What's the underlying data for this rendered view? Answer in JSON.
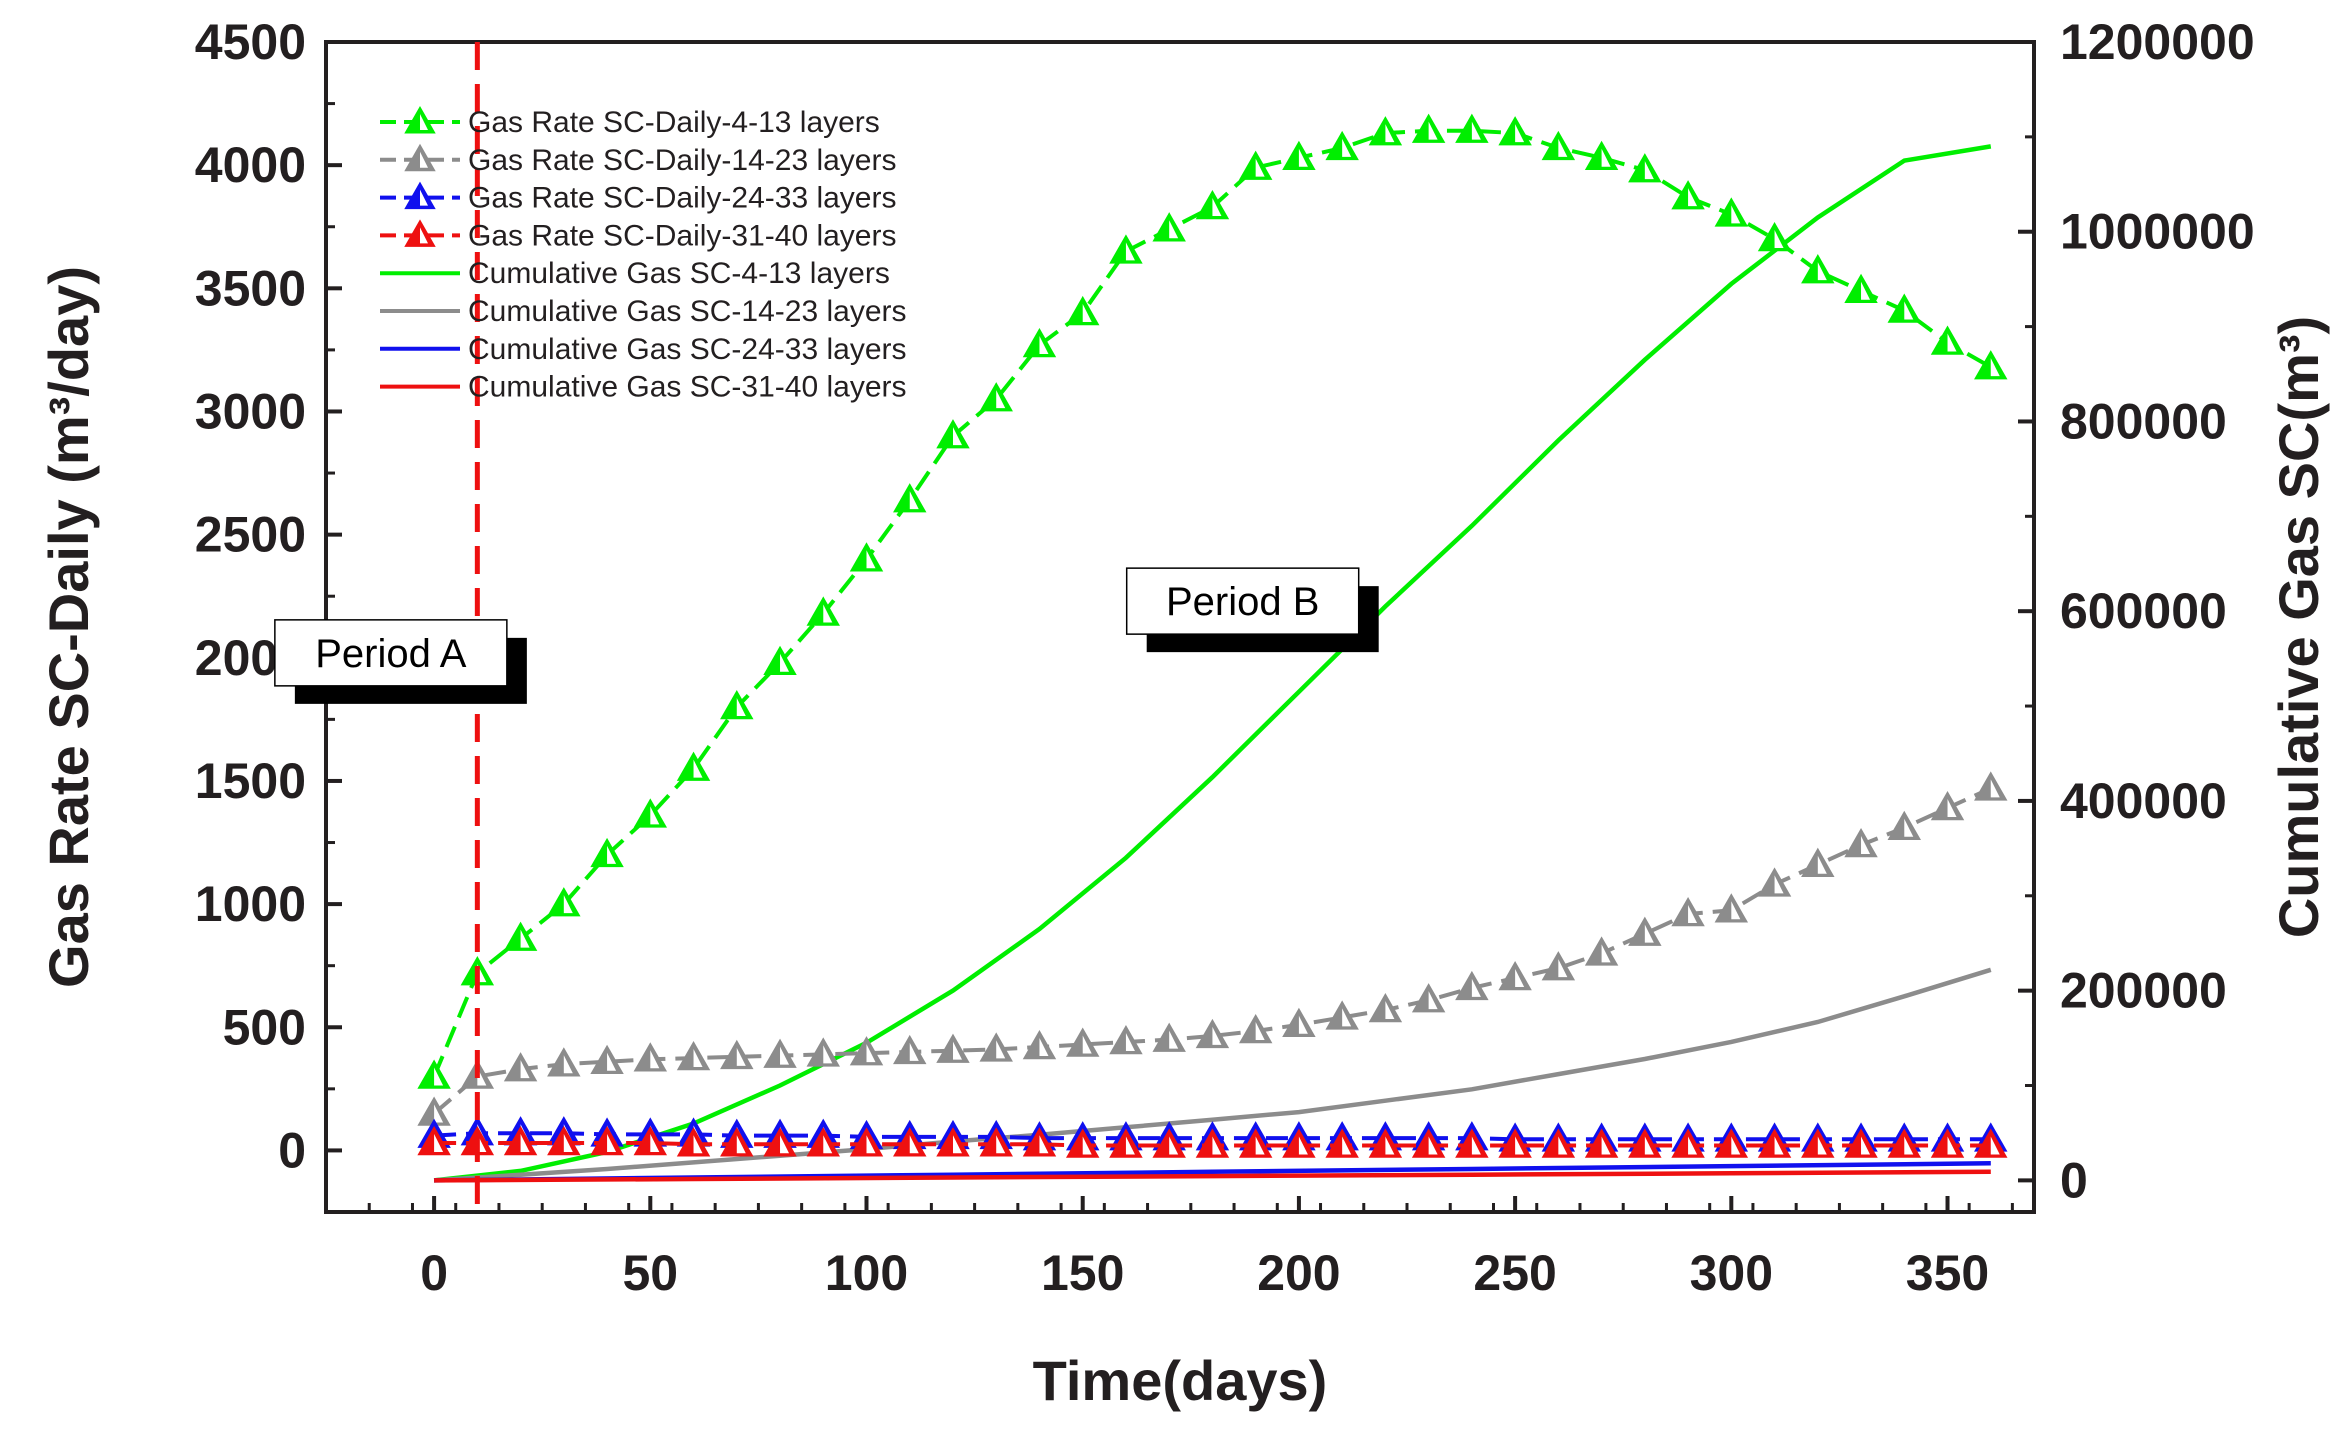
{
  "chart_data": {
    "type": "line",
    "xlabel": "Time(days)",
    "ylabel_left": "Gas Rate SC-Daily (m³/day)",
    "ylabel_right": "Cumulative Gas SC(m³)",
    "xlim": [
      -25,
      370
    ],
    "ylim_left": [
      -250,
      4500
    ],
    "ylim_right": [
      -33333,
      1200000
    ],
    "x_ticks": [
      0,
      50,
      100,
      150,
      200,
      250,
      300,
      350
    ],
    "x_tick_labels": [
      "0",
      "50",
      "100",
      "150",
      "200",
      "250",
      "300",
      "350"
    ],
    "y_left_ticks": [
      0,
      500,
      1000,
      1500,
      2000,
      2500,
      3000,
      3500,
      4000,
      4500
    ],
    "y_left_tick_labels": [
      "0",
      "500",
      "1000",
      "1500",
      "2000",
      "2500",
      "3000",
      "3500",
      "4000",
      "4500"
    ],
    "y_right_ticks": [
      0,
      200000,
      400000,
      600000,
      800000,
      1000000,
      1200000
    ],
    "y_right_tick_labels": [
      "0",
      "200000",
      "400000",
      "600000",
      "800000",
      "1000000",
      "1200000"
    ],
    "vline_x": 10,
    "annotations": [
      {
        "text": "Period A",
        "x": -10,
        "y": 2020
      },
      {
        "text": "Period B",
        "x": 187,
        "y": 2230
      }
    ],
    "series": [
      {
        "name": "Gas Rate SC-Daily-4-13 layers",
        "legend_label": "Gas Rate SC-Daily-4-13    layers",
        "kind": "rate",
        "axis": "left",
        "color": "#00ee00",
        "x": [
          0,
          10,
          20,
          30,
          40,
          50,
          60,
          70,
          80,
          90,
          100,
          110,
          120,
          130,
          140,
          150,
          160,
          170,
          180,
          190,
          200,
          210,
          220,
          230,
          240,
          250,
          260,
          270,
          280,
          290,
          300,
          310,
          320,
          330,
          340,
          350,
          360
        ],
        "values": [
          300,
          720,
          860,
          1000,
          1200,
          1360,
          1550,
          1800,
          1980,
          2180,
          2400,
          2640,
          2900,
          3050,
          3270,
          3400,
          3650,
          3740,
          3830,
          3990,
          4030,
          4070,
          4130,
          4140,
          4140,
          4130,
          4070,
          4030,
          3980,
          3870,
          3800,
          3700,
          3570,
          3490,
          3410,
          3280,
          3180
        ]
      },
      {
        "name": "Gas Rate SC-Daily-14-23 layers",
        "legend_label": "Gas Rate SC-Daily-14-23  layers",
        "kind": "rate",
        "axis": "left",
        "color": "#8c8c8c",
        "x": [
          0,
          10,
          20,
          30,
          40,
          50,
          60,
          70,
          80,
          90,
          100,
          110,
          120,
          130,
          140,
          150,
          160,
          170,
          180,
          190,
          200,
          210,
          220,
          230,
          240,
          250,
          260,
          270,
          280,
          290,
          300,
          310,
          320,
          330,
          340,
          350,
          360
        ],
        "values": [
          150,
          300,
          330,
          350,
          360,
          370,
          375,
          380,
          385,
          390,
          395,
          400,
          405,
          410,
          420,
          430,
          440,
          450,
          465,
          485,
          510,
          540,
          570,
          610,
          660,
          700,
          740,
          800,
          880,
          960,
          975,
          1080,
          1160,
          1240,
          1310,
          1390,
          1470
        ]
      },
      {
        "name": "Gas Rate SC-Daily-24-33 layers",
        "legend_label": "Gas Rate SC-Daily-24-33  layers",
        "kind": "rate",
        "axis": "left",
        "color": "#1010ee",
        "x": [
          0,
          10,
          20,
          30,
          40,
          50,
          60,
          70,
          80,
          90,
          100,
          110,
          120,
          130,
          140,
          150,
          160,
          170,
          180,
          190,
          200,
          210,
          220,
          230,
          240,
          250,
          260,
          270,
          280,
          290,
          300,
          310,
          320,
          330,
          340,
          350,
          360
        ],
        "values": [
          60,
          70,
          70,
          70,
          65,
          65,
          65,
          60,
          60,
          60,
          55,
          55,
          55,
          55,
          50,
          50,
          50,
          50,
          50,
          50,
          50,
          50,
          50,
          50,
          50,
          45,
          45,
          45,
          45,
          45,
          45,
          45,
          45,
          45,
          45,
          45,
          45
        ]
      },
      {
        "name": "Gas Rate SC-Daily-31-40 layers",
        "legend_label": "Gas Rate SC-Daily-31-40  layers",
        "kind": "rate",
        "axis": "left",
        "color": "#ee1010",
        "x": [
          0,
          10,
          20,
          30,
          40,
          50,
          60,
          70,
          80,
          90,
          100,
          110,
          120,
          130,
          140,
          150,
          160,
          170,
          180,
          190,
          200,
          210,
          220,
          230,
          240,
          250,
          260,
          270,
          280,
          290,
          300,
          310,
          320,
          330,
          340,
          350,
          360
        ],
        "values": [
          30,
          30,
          30,
          30,
          30,
          30,
          25,
          25,
          25,
          25,
          25,
          25,
          25,
          25,
          25,
          20,
          20,
          20,
          20,
          20,
          20,
          20,
          20,
          20,
          20,
          20,
          20,
          20,
          20,
          20,
          20,
          20,
          20,
          20,
          20,
          20,
          20
        ]
      },
      {
        "name": "Cumulative Gas SC-4-13 layers",
        "legend_label": "Cumulative Gas SC-4-13     layers",
        "kind": "cumulative",
        "axis": "right",
        "color": "#00ee00",
        "x": [
          0,
          20,
          40,
          60,
          80,
          100,
          120,
          140,
          160,
          180,
          200,
          220,
          240,
          260,
          280,
          300,
          320,
          340,
          360
        ],
        "values": [
          0,
          10000,
          30000,
          60000,
          100000,
          145000,
          200000,
          265000,
          340000,
          425000,
          515000,
          605000,
          690000,
          780000,
          865000,
          945000,
          1015000,
          1075000,
          1090000
        ]
      },
      {
        "name": "Cumulative Gas SC-14-23 layers",
        "legend_label": "Cumulative Gas SC-14-23  layers",
        "kind": "cumulative",
        "axis": "right",
        "color": "#8c8c8c",
        "x": [
          0,
          20,
          40,
          60,
          80,
          100,
          120,
          140,
          160,
          180,
          200,
          220,
          240,
          260,
          280,
          300,
          320,
          340,
          360
        ],
        "values": [
          0,
          6000,
          12000,
          19000,
          26000,
          33000,
          41000,
          48000,
          56000,
          64000,
          72000,
          84000,
          96000,
          112000,
          128000,
          146000,
          167000,
          194000,
          222000
        ]
      },
      {
        "name": "Cumulative Gas SC-24-33 layers",
        "legend_label": "Cumulative Gas SC-24-33  layers",
        "kind": "cumulative",
        "axis": "right",
        "color": "#1010ee",
        "x": [
          0,
          60,
          120,
          180,
          240,
          300,
          360
        ],
        "values": [
          0,
          3000,
          6000,
          9000,
          12000,
          15000,
          18000
        ]
      },
      {
        "name": "Cumulative Gas SC-31-40 layers",
        "legend_label": "Cumulative Gas SC-31-40  layers",
        "kind": "cumulative",
        "axis": "right",
        "color": "#ee1010",
        "x": [
          0,
          60,
          120,
          180,
          240,
          300,
          360
        ],
        "values": [
          0,
          1500,
          3000,
          4500,
          6000,
          7500,
          9000
        ]
      }
    ]
  }
}
